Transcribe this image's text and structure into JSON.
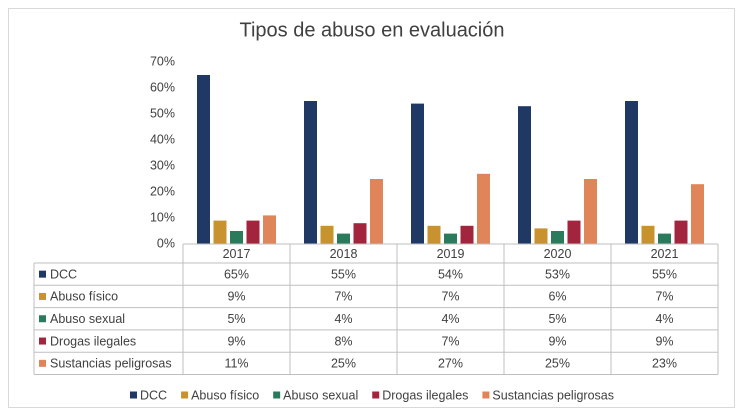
{
  "chart_data": {
    "type": "bar",
    "title": "Tipos de abuso en evaluación",
    "categories": [
      "2017",
      "2018",
      "2019",
      "2020",
      "2021"
    ],
    "series": [
      {
        "name": "DCC",
        "color": "#1f3864",
        "values": [
          65,
          55,
          54,
          53,
          55
        ],
        "value_labels": [
          "65%",
          "55%",
          "54%",
          "53%",
          "55%"
        ]
      },
      {
        "name": "Abuso físico",
        "color": "#c8922f",
        "values": [
          9,
          7,
          7,
          6,
          7
        ],
        "value_labels": [
          "9%",
          "7%",
          "7%",
          "6%",
          "7%"
        ]
      },
      {
        "name": "Abuso sexual",
        "color": "#2a7b5b",
        "values": [
          5,
          4,
          4,
          5,
          4
        ],
        "value_labels": [
          "5%",
          "4%",
          "4%",
          "5%",
          "4%"
        ]
      },
      {
        "name": "Drogas ilegales",
        "color": "#a2243d",
        "values": [
          9,
          8,
          7,
          9,
          9
        ],
        "value_labels": [
          "9%",
          "8%",
          "7%",
          "9%",
          "9%"
        ]
      },
      {
        "name": "Sustancias peligrosas",
        "color": "#e0845a",
        "values": [
          11,
          25,
          27,
          25,
          23
        ],
        "value_labels": [
          "11%",
          "25%",
          "27%",
          "25%",
          "23%"
        ]
      }
    ],
    "ylim": [
      0,
      70
    ],
    "yticks": [
      {
        "value": 0,
        "label": "0%"
      },
      {
        "value": 10,
        "label": "10%"
      },
      {
        "value": 20,
        "label": "20%"
      },
      {
        "value": 30,
        "label": "30%"
      },
      {
        "value": 40,
        "label": "40%"
      },
      {
        "value": 50,
        "label": "50%"
      },
      {
        "value": 60,
        "label": "60%"
      },
      {
        "value": 70,
        "label": "70%"
      }
    ],
    "grid": false,
    "legend": "bottom"
  }
}
